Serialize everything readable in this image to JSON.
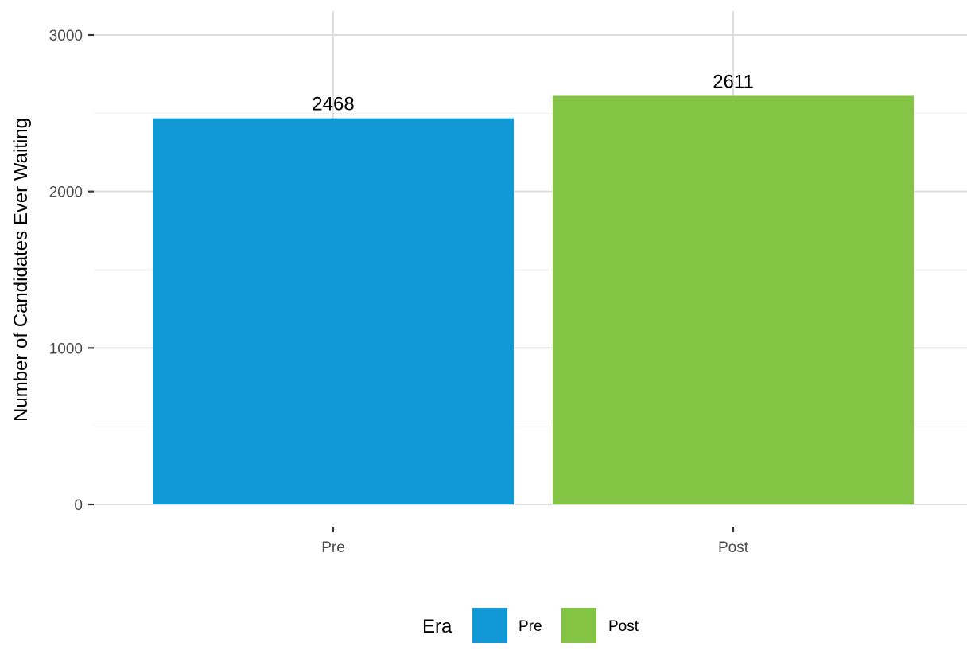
{
  "chart_data": {
    "type": "bar",
    "categories": [
      "Pre",
      "Post"
    ],
    "values": [
      2468,
      2611
    ],
    "data_labels": [
      "2468",
      "2611"
    ],
    "colors": [
      "#1199d6",
      "#84c444"
    ],
    "title": "",
    "xlabel": "",
    "ylabel": "Number of Candidates Ever Waiting",
    "ylim": [
      0,
      3000
    ],
    "y_ticks": [
      0,
      1000,
      2000,
      3000
    ],
    "y_tick_labels": [
      "0",
      "1000",
      "2000",
      "3000"
    ],
    "y_minor_ticks": [
      500,
      1500,
      2500
    ],
    "grid": true,
    "legend": {
      "title": "Era",
      "position": "bottom",
      "entries": [
        {
          "label": "Pre",
          "color": "#1199d6"
        },
        {
          "label": "Post",
          "color": "#84c444"
        }
      ]
    }
  }
}
